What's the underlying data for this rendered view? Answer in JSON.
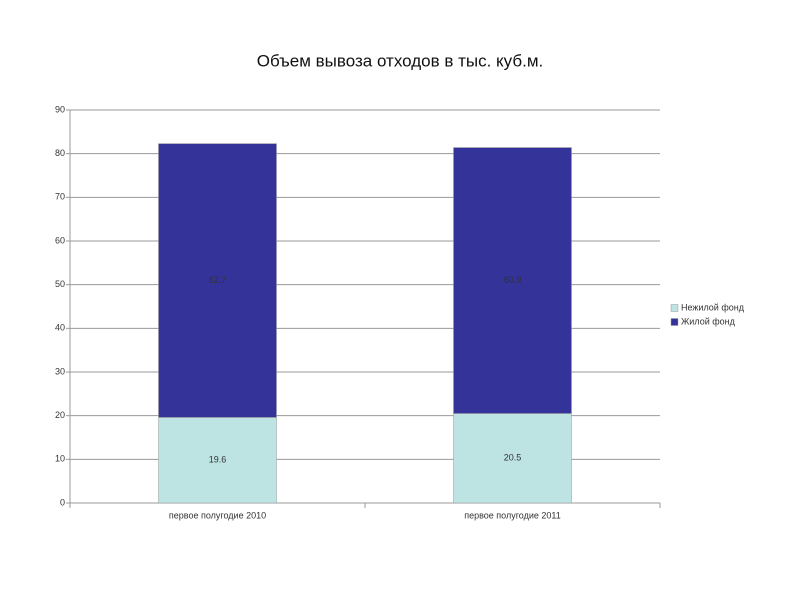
{
  "chart_data": {
    "type": "stacked_bar",
    "title": "Объем вывоза отходов в тыс. куб.м.",
    "categories": [
      "первое полугодие  2010",
      "первое полугодие 2011"
    ],
    "series": [
      {
        "name": "Нежилой фонд",
        "color": "#bde3e3",
        "values": [
          19.6,
          20.5
        ]
      },
      {
        "name": "Жилой фонд",
        "color": "#333399",
        "values": [
          62.7,
          60.9
        ]
      }
    ],
    "ylim": [
      0,
      90
    ],
    "yticks": [
      0,
      10,
      20,
      30,
      40,
      50,
      60,
      70,
      80,
      90
    ],
    "grid": true,
    "legend": "right"
  }
}
